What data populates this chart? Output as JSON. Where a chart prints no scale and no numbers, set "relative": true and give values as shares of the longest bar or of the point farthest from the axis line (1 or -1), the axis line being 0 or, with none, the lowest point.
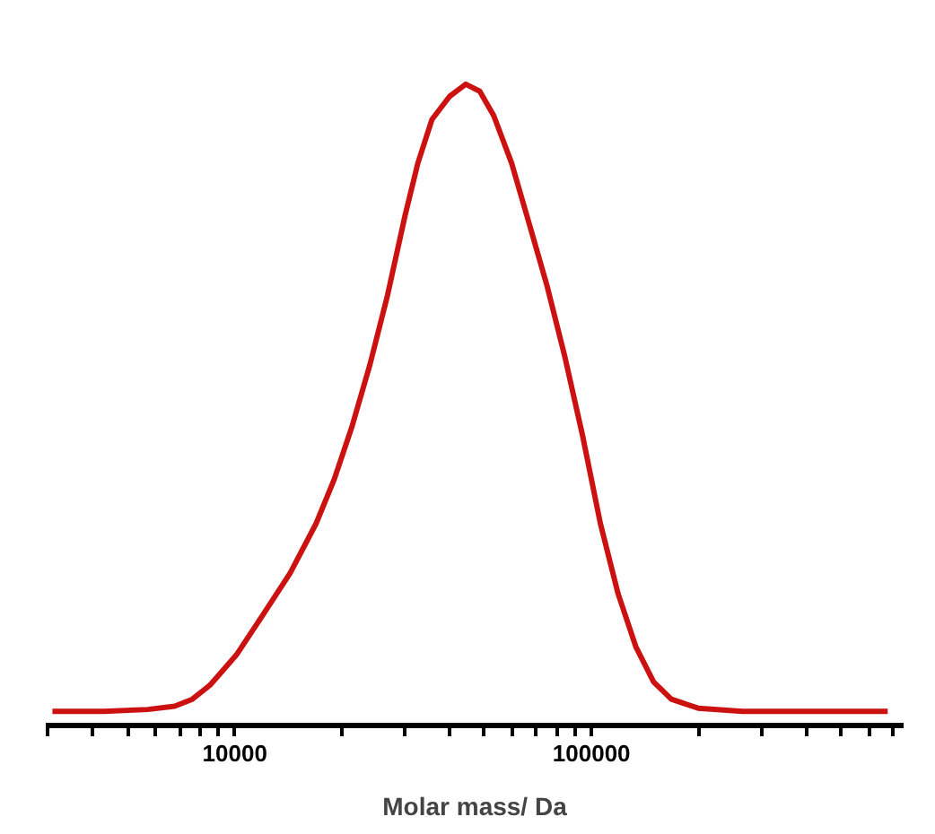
{
  "chart_data": {
    "type": "line",
    "xlabel": "Molar mass/ Da",
    "relative": true,
    "log": "x",
    "grid": false,
    "tick_labels": "x",
    "xlim": [
      2950,
      750000
    ],
    "xticks": [
      {
        "value": 3000,
        "label": null
      },
      {
        "value": 4000,
        "label": null
      },
      {
        "value": 5000,
        "label": null
      },
      {
        "value": 6000,
        "label": null
      },
      {
        "value": 7000,
        "label": null
      },
      {
        "value": 8000,
        "label": null
      },
      {
        "value": 9000,
        "label": null
      },
      10000,
      {
        "value": 20000,
        "label": null
      },
      {
        "value": 30000,
        "label": null
      },
      {
        "value": 40000,
        "label": null
      },
      {
        "value": 50000,
        "label": null
      },
      {
        "value": 60000,
        "label": null
      },
      {
        "value": 70000,
        "label": null
      },
      {
        "value": 80000,
        "label": null
      },
      {
        "value": 90000,
        "label": null
      },
      100000,
      {
        "value": 200000,
        "label": null
      },
      {
        "value": 300000,
        "label": null
      },
      {
        "value": 400000,
        "label": null
      },
      {
        "value": 500000,
        "label": null
      },
      {
        "value": 600000,
        "label": null
      },
      {
        "value": 700000,
        "label": null
      }
    ],
    "series": [
      {
        "color": "#cc1111",
        "x": [
          3080,
          4290,
          5700,
          6780,
          7600,
          8520,
          10100,
          12000,
          14300,
          16900,
          19000,
          21300,
          23900,
          26800,
          30000,
          32600,
          35700,
          40000,
          44400,
          48600,
          53200,
          59700,
          67000,
          75100,
          84200,
          94400,
          105900,
          118800,
          133100,
          149300,
          167400,
          199000,
          265000,
          470000,
          677000
        ],
        "values": [
          0.022,
          0.022,
          0.025,
          0.03,
          0.041,
          0.063,
          0.11,
          0.173,
          0.238,
          0.315,
          0.384,
          0.466,
          0.562,
          0.671,
          0.795,
          0.877,
          0.945,
          0.981,
          1.0,
          0.989,
          0.951,
          0.877,
          0.781,
          0.685,
          0.575,
          0.452,
          0.315,
          0.205,
          0.123,
          0.068,
          0.041,
          0.027,
          0.022,
          0.022,
          0.022
        ]
      }
    ]
  }
}
